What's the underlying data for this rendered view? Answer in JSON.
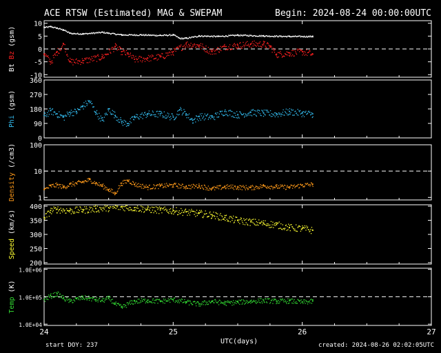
{
  "header": {
    "title": "ACE RTSW (Estimated) MAG & SWEPAM",
    "begin": "Begin: 2024-08-24 00:00:00UTC"
  },
  "footer": {
    "start_doy": "start DOY: 237",
    "created": "created: 2024-08-26 02:02:05UTC"
  },
  "xaxis": {
    "label": "UTC(days)",
    "ticks": [
      "24",
      "25",
      "26",
      "27"
    ],
    "range": [
      24,
      27
    ]
  },
  "colors": {
    "bt": "#ffffff",
    "bz": "#ff2020",
    "phi": "#33bbee",
    "density": "#ff9a1a",
    "speed": "#ffff33",
    "temp": "#33dd33"
  },
  "chart_data": [
    {
      "type": "scatter",
      "panel": "mag",
      "ylabel_parts": [
        "Bt",
        "Bz",
        "(gsm)"
      ],
      "yticks": [
        "10",
        "5",
        "0",
        "-5",
        "-10"
      ],
      "ylim": [
        -11,
        11
      ],
      "dashed_ref": 0,
      "series": [
        {
          "name": "Bt",
          "x": [
            24.0,
            24.05,
            24.1,
            24.15,
            24.2,
            24.3,
            24.45,
            24.6,
            24.75,
            24.9,
            25.0,
            25.05,
            25.1,
            25.2,
            25.35,
            25.5,
            25.7,
            25.9,
            26.08
          ],
          "values": [
            8.5,
            8.8,
            8.2,
            7.5,
            6.2,
            6.0,
            6.6,
            5.6,
            5.6,
            5.4,
            5.6,
            4.2,
            4.3,
            5.2,
            5.0,
            5.5,
            5.2,
            5.0,
            5.0
          ]
        },
        {
          "name": "Bz",
          "x": [
            24.0,
            24.05,
            24.1,
            24.15,
            24.2,
            24.3,
            24.45,
            24.55,
            24.6,
            24.65,
            24.7,
            24.8,
            24.9,
            25.0,
            25.1,
            25.2,
            25.3,
            25.4,
            25.5,
            25.6,
            25.7,
            25.75,
            25.8,
            25.9,
            26.0,
            26.08
          ],
          "values": [
            -2.0,
            -5.0,
            -1.0,
            2.0,
            -5.0,
            -4.5,
            -3.0,
            1.0,
            -1.0,
            -2.0,
            -4.0,
            -3.5,
            -3.0,
            -1.0,
            2.0,
            1.5,
            -1.0,
            1.0,
            1.5,
            2.0,
            2.0,
            1.0,
            -2.0,
            -1.5,
            -1.0,
            -2.0
          ]
        }
      ]
    },
    {
      "type": "scatter",
      "panel": "phi",
      "ylabel_parts": [
        "Phi",
        "(gsm)"
      ],
      "yticks": [
        "360",
        "270",
        "180",
        "90",
        "0"
      ],
      "ylim": [
        0,
        360
      ],
      "series": [
        {
          "name": "Phi",
          "x": [
            24.0,
            24.05,
            24.1,
            24.15,
            24.2,
            24.25,
            24.3,
            24.35,
            24.4,
            24.45,
            24.5,
            24.55,
            24.6,
            24.65,
            24.7,
            24.8,
            24.9,
            25.0,
            25.05,
            25.1,
            25.15,
            25.2,
            25.3,
            25.4,
            25.5,
            25.6,
            25.7,
            25.8,
            25.9,
            26.0,
            26.08
          ],
          "values": [
            140,
            170,
            150,
            130,
            160,
            165,
            200,
            230,
            160,
            110,
            180,
            140,
            100,
            90,
            130,
            150,
            150,
            130,
            175,
            150,
            110,
            135,
            130,
            165,
            145,
            160,
            155,
            150,
            165,
            155,
            150
          ]
        }
      ]
    },
    {
      "type": "scatter",
      "panel": "density",
      "ylabel_parts": [
        "Density",
        "(/cm3)"
      ],
      "yticks": [
        "100",
        "10",
        "1"
      ],
      "yscale": "log",
      "ylim": [
        0.8,
        100
      ],
      "dashed_ref": 10,
      "series": [
        {
          "name": "Density",
          "x": [
            24.0,
            24.05,
            24.1,
            24.15,
            24.2,
            24.25,
            24.3,
            24.35,
            24.4,
            24.45,
            24.5,
            24.55,
            24.6,
            24.65,
            24.7,
            24.8,
            24.9,
            25.0,
            25.1,
            25.2,
            25.3,
            25.4,
            25.5,
            25.6,
            25.7,
            25.8,
            25.9,
            26.0,
            26.08
          ],
          "values": [
            2.0,
            2.8,
            3.0,
            2.5,
            3.2,
            3.5,
            4.0,
            4.8,
            3.5,
            2.8,
            2.0,
            1.4,
            3.5,
            4.5,
            3.2,
            2.5,
            2.8,
            3.0,
            2.6,
            2.8,
            2.2,
            2.6,
            2.5,
            2.4,
            2.8,
            2.6,
            2.5,
            3.0,
            3.2
          ]
        }
      ]
    },
    {
      "type": "scatter",
      "panel": "speed",
      "ylabel_parts": [
        "Speed",
        "(km/s)"
      ],
      "yticks": [
        "400",
        "350",
        "300",
        "250",
        "200"
      ],
      "ylim": [
        195,
        405
      ],
      "series": [
        {
          "name": "Speed",
          "x": [
            24.0,
            24.05,
            24.1,
            24.2,
            24.3,
            24.4,
            24.5,
            24.6,
            24.7,
            24.8,
            24.9,
            25.0,
            25.1,
            25.2,
            25.3,
            25.4,
            25.5,
            25.6,
            25.7,
            25.8,
            25.9,
            26.0,
            26.08
          ],
          "values": [
            360,
            385,
            390,
            385,
            388,
            392,
            395,
            398,
            395,
            390,
            387,
            385,
            380,
            375,
            370,
            360,
            350,
            345,
            340,
            335,
            325,
            322,
            315
          ]
        }
      ]
    },
    {
      "type": "scatter",
      "panel": "temp",
      "ylabel_parts": [
        "Temp",
        "(K)"
      ],
      "yticks": [
        "1.0E+06",
        "1.0E+05",
        "1.0E+04"
      ],
      "yscale": "log",
      "ylim": [
        9000,
        1100000
      ],
      "dashed_ref": 100000,
      "series": [
        {
          "name": "Temp",
          "x": [
            24.0,
            24.05,
            24.1,
            24.15,
            24.2,
            24.25,
            24.3,
            24.35,
            24.4,
            24.45,
            24.5,
            24.55,
            24.6,
            24.7,
            24.8,
            24.9,
            25.0,
            25.1,
            25.2,
            25.3,
            25.4,
            25.5,
            25.6,
            25.7,
            25.8,
            25.9,
            26.0,
            26.08
          ],
          "values": [
            80000,
            110000,
            130000,
            90000,
            70000,
            85000,
            95000,
            90000,
            80000,
            75000,
            90000,
            55000,
            42000,
            70000,
            75000,
            70000,
            80000,
            65000,
            55000,
            70000,
            60000,
            65000,
            70000,
            75000,
            70000,
            72000,
            65000,
            70000
          ]
        }
      ]
    }
  ]
}
